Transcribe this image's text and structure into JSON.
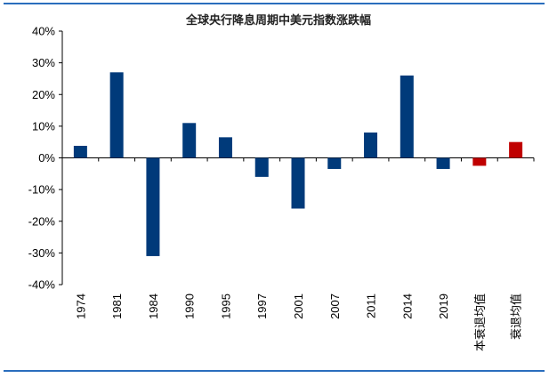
{
  "chart_data": {
    "type": "bar",
    "title": "全球央行降息周期中美元指数涨跌幅",
    "categories": [
      "1974",
      "1981",
      "1984",
      "1990",
      "1995",
      "1997",
      "2001",
      "2007",
      "2011",
      "2014",
      "2019",
      "本衰退均值",
      "衰退均值"
    ],
    "values": [
      3.8,
      27.0,
      -31.0,
      11.0,
      6.5,
      -6.0,
      -16.0,
      -3.5,
      8.0,
      26.0,
      -3.5,
      -2.5,
      5.0
    ],
    "colors": [
      "#003a7a",
      "#003a7a",
      "#003a7a",
      "#003a7a",
      "#003a7a",
      "#003a7a",
      "#003a7a",
      "#003a7a",
      "#003a7a",
      "#003a7a",
      "#003a7a",
      "#c00000",
      "#c00000"
    ],
    "ylim": [
      -40,
      40
    ],
    "yticks": [
      40,
      30,
      20,
      10,
      0,
      -10,
      -20,
      -30,
      -40
    ],
    "ytick_labels": [
      "40%",
      "30%",
      "20%",
      "10%",
      "0%",
      "-10%",
      "-20%",
      "-30%",
      "-40%"
    ],
    "xlabel": "",
    "ylabel": "",
    "grid": false,
    "legend": "none"
  }
}
